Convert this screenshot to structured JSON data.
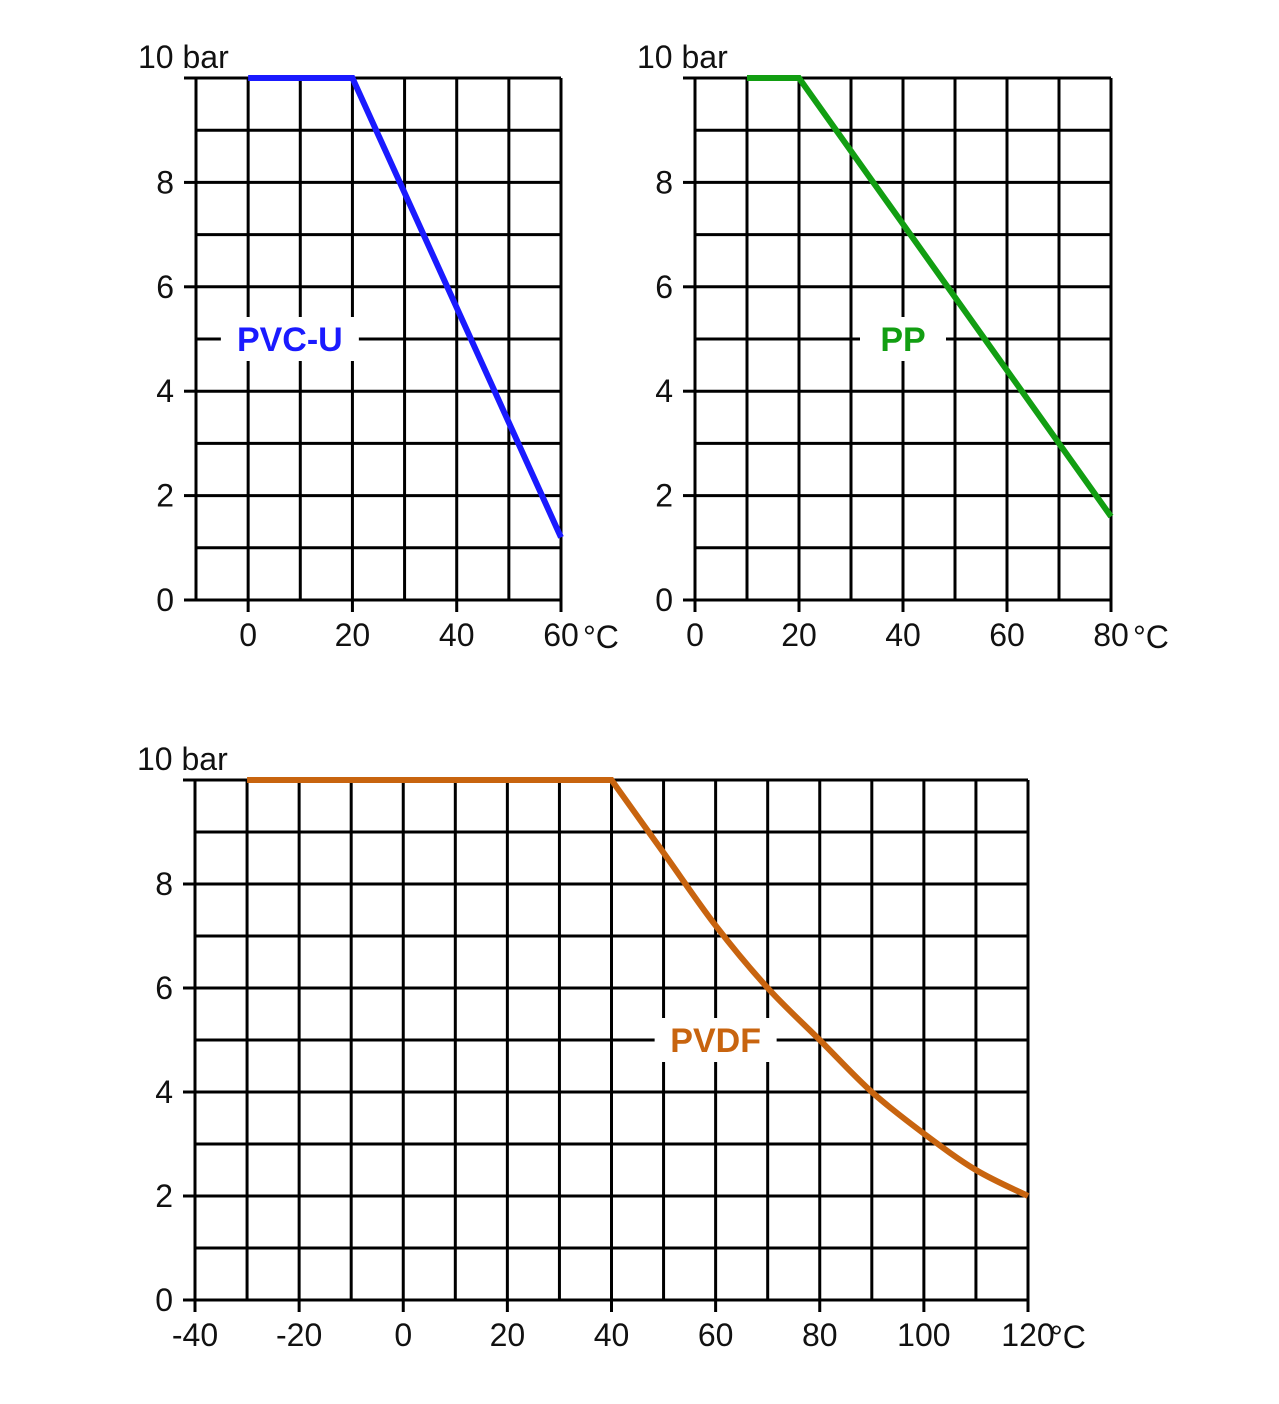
{
  "chart_data": [
    {
      "type": "line",
      "ylabel": "10 bar",
      "xunit": "°C",
      "xlim": [
        -10,
        60
      ],
      "ylim": [
        0,
        10
      ],
      "xgrid_step": 10,
      "ygrid_step": 1,
      "xticks": [
        0,
        20,
        40,
        60
      ],
      "xtick_labels": [
        "0",
        "20",
        "40",
        "60"
      ],
      "yticks": [
        0,
        2,
        4,
        6,
        8
      ],
      "ytick_labels": [
        "0",
        "2",
        "4",
        "6",
        "8"
      ],
      "grid": true,
      "series": [
        {
          "name": "PVC-U",
          "color": "#1a1aff",
          "x": [
            0,
            20,
            60
          ],
          "y": [
            10,
            10,
            1.2
          ]
        }
      ]
    },
    {
      "type": "line",
      "ylabel": "10 bar",
      "xunit": "°C",
      "xlim": [
        0,
        80
      ],
      "ylim": [
        0,
        10
      ],
      "xgrid_step": 10,
      "ygrid_step": 1,
      "xticks": [
        0,
        20,
        40,
        60,
        80
      ],
      "xtick_labels": [
        "0",
        "20",
        "40",
        "60",
        "80"
      ],
      "yticks": [
        0,
        2,
        4,
        6,
        8
      ],
      "ytick_labels": [
        "0",
        "2",
        "4",
        "6",
        "8"
      ],
      "grid": true,
      "series": [
        {
          "name": "PP",
          "color": "#129e12",
          "x": [
            10,
            20,
            80
          ],
          "y": [
            10,
            10,
            1.6
          ]
        }
      ]
    },
    {
      "type": "line",
      "ylabel": "10 bar",
      "xunit": "°C",
      "xlim": [
        -40,
        120
      ],
      "ylim": [
        0,
        10
      ],
      "xgrid_step": 10,
      "ygrid_step": 1,
      "xticks": [
        -40,
        -20,
        0,
        20,
        40,
        60,
        80,
        100,
        120
      ],
      "xtick_labels": [
        "-40",
        "-20",
        "0",
        "20",
        "40",
        "60",
        "80",
        "100",
        "120"
      ],
      "yticks": [
        0,
        2,
        4,
        6,
        8
      ],
      "ytick_labels": [
        "0",
        "2",
        "4",
        "6",
        "8"
      ],
      "grid": true,
      "series": [
        {
          "name": "PVDF",
          "color": "#c8640f",
          "x": [
            -30,
            40,
            50,
            60,
            70,
            80,
            90,
            100,
            110,
            120
          ],
          "y": [
            10,
            10,
            8.6,
            7.2,
            6.0,
            5.0,
            4.0,
            3.2,
            2.5,
            2.0
          ]
        }
      ]
    }
  ]
}
